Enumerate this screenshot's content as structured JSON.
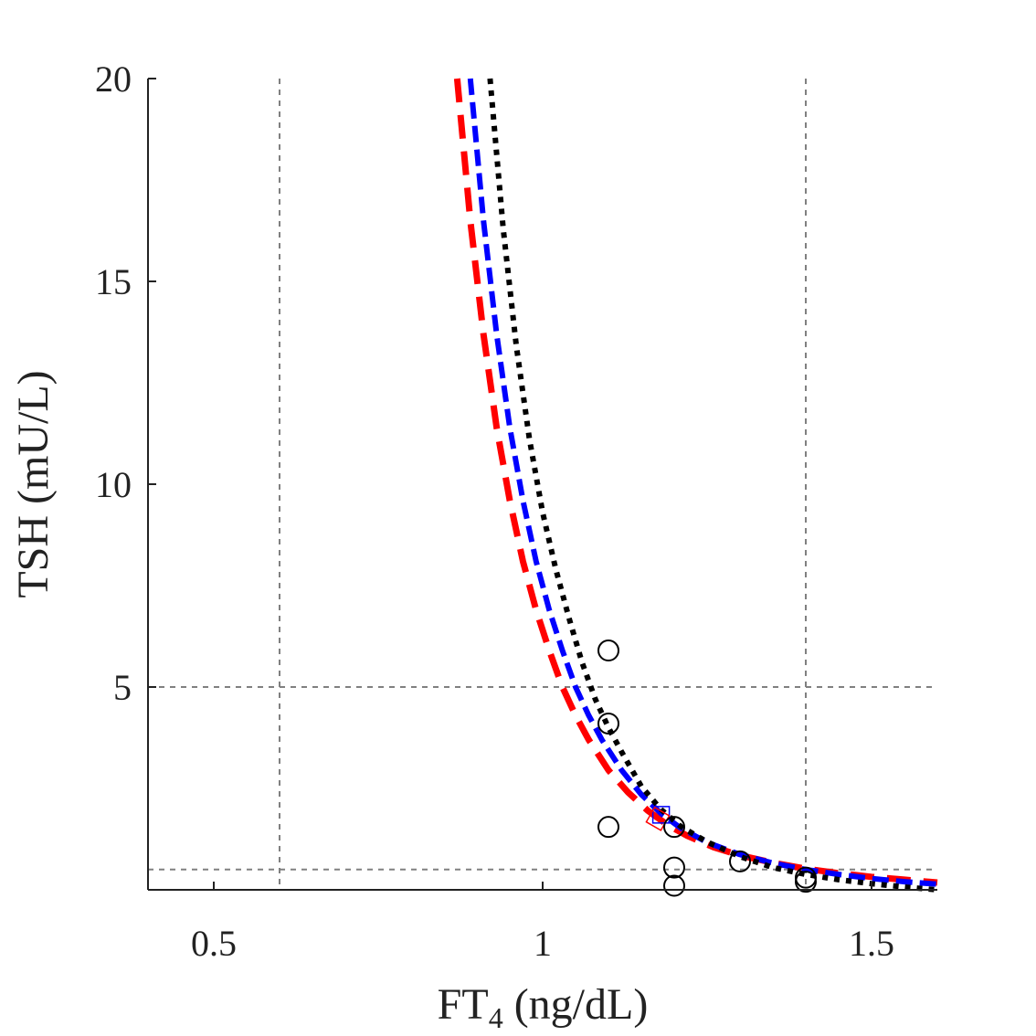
{
  "chart_data": {
    "type": "line",
    "title": "",
    "xlabel_main": "FT",
    "xlabel_sub": "4",
    "xlabel_unit": " (ng/dL)",
    "ylabel": "TSH (mU/L)",
    "xlim": [
      0.4,
      1.6
    ],
    "ylim": [
      0,
      20
    ],
    "x_ticks": [
      0.5,
      1,
      1.5
    ],
    "x_tick_labels": [
      "0.5",
      "1",
      "1.5"
    ],
    "y_ticks": [
      5,
      10,
      15,
      20
    ],
    "y_tick_labels": [
      "5",
      "10",
      "15",
      "20"
    ],
    "reference_lines": {
      "vertical": [
        0.6,
        1.4
      ],
      "horizontal": [
        0.5,
        5
      ]
    },
    "series": [
      {
        "name": "fit-black-dotted",
        "style": "dotted",
        "color": "#000000",
        "x": [
          0.92,
          0.94,
          0.96,
          0.98,
          1.0,
          1.02,
          1.04,
          1.06,
          1.08,
          1.1,
          1.12,
          1.15,
          1.18,
          1.21,
          1.25,
          1.3,
          1.35,
          1.4,
          1.45,
          1.5,
          1.55,
          1.6
        ],
        "y": [
          20.0,
          16.3,
          13.4,
          11.1,
          9.3,
          7.9,
          6.7,
          5.6,
          4.7,
          4.0,
          3.4,
          2.55,
          1.98,
          1.56,
          1.18,
          0.82,
          0.55,
          0.38,
          0.25,
          0.15,
          0.07,
          0.0
        ]
      },
      {
        "name": "fit-blue-dashed",
        "style": "dashed",
        "color": "#0000ff",
        "x": [
          0.89,
          0.91,
          0.93,
          0.95,
          0.97,
          0.99,
          1.01,
          1.03,
          1.05,
          1.07,
          1.09,
          1.12,
          1.15,
          1.18,
          1.21,
          1.25,
          1.3,
          1.35,
          1.4,
          1.45,
          1.5,
          1.55,
          1.6
        ],
        "y": [
          20.0,
          16.5,
          13.7,
          11.4,
          9.6,
          8.1,
          6.9,
          5.9,
          5.0,
          4.3,
          3.7,
          2.95,
          2.35,
          1.88,
          1.52,
          1.17,
          0.87,
          0.66,
          0.5,
          0.38,
          0.28,
          0.2,
          0.14
        ]
      },
      {
        "name": "fit-red-dashed",
        "style": "dashed",
        "color": "#ff0000",
        "x": [
          0.87,
          0.89,
          0.91,
          0.93,
          0.95,
          0.97,
          0.99,
          1.01,
          1.03,
          1.05,
          1.07,
          1.1,
          1.13,
          1.16,
          1.19,
          1.22,
          1.26,
          1.3,
          1.35,
          1.4,
          1.45,
          1.5,
          1.55,
          1.6
        ],
        "y": [
          20.0,
          16.5,
          13.7,
          11.4,
          9.6,
          8.1,
          6.9,
          5.9,
          5.0,
          4.3,
          3.7,
          2.95,
          2.4,
          1.95,
          1.6,
          1.33,
          1.05,
          0.85,
          0.67,
          0.52,
          0.41,
          0.32,
          0.25,
          0.18
        ]
      }
    ],
    "observations": {
      "name": "data-points",
      "marker": "circle",
      "color": "#000000",
      "points": [
        {
          "x": 1.1,
          "y": 5.9
        },
        {
          "x": 1.1,
          "y": 4.1
        },
        {
          "x": 1.1,
          "y": 1.55
        },
        {
          "x": 1.2,
          "y": 1.55
        },
        {
          "x": 1.2,
          "y": 0.55
        },
        {
          "x": 1.2,
          "y": 0.1
        },
        {
          "x": 1.3,
          "y": 0.7
        },
        {
          "x": 1.4,
          "y": 0.3
        },
        {
          "x": 1.4,
          "y": 0.2
        }
      ]
    },
    "markers": [
      {
        "name": "blue-square-marker",
        "shape": "square",
        "color": "#0000ff",
        "x": 1.18,
        "y": 1.85
      },
      {
        "name": "red-diamond-marker",
        "shape": "diamond",
        "color": "#ff0000",
        "x": 1.175,
        "y": 1.75
      }
    ]
  }
}
